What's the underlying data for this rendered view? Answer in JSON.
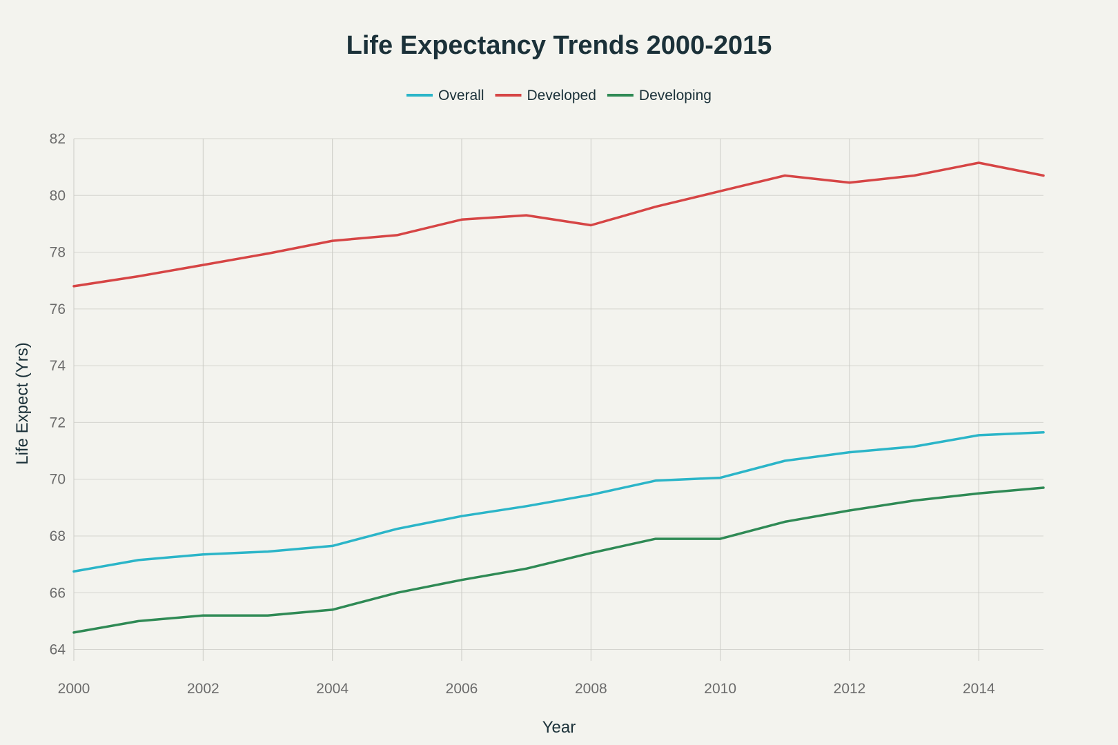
{
  "chart_data": {
    "type": "line",
    "title": "Life Expectancy Trends 2000-2015",
    "xlabel": "Year",
    "ylabel": "Life Expect (Yrs)",
    "x": [
      2000,
      2001,
      2002,
      2003,
      2004,
      2005,
      2006,
      2007,
      2008,
      2009,
      2010,
      2011,
      2012,
      2013,
      2014,
      2015
    ],
    "xlim": [
      2000,
      2015
    ],
    "ylim": [
      63.6,
      82
    ],
    "xticks": [
      2000,
      2002,
      2004,
      2006,
      2008,
      2010,
      2012,
      2014
    ],
    "yticks": [
      64,
      66,
      68,
      70,
      72,
      74,
      76,
      78,
      80,
      82
    ],
    "grid": true,
    "legend_position": "top-center",
    "series": [
      {
        "name": "Overall",
        "color": "#2bb5c8",
        "values": [
          66.75,
          67.15,
          67.35,
          67.45,
          67.65,
          68.25,
          68.7,
          69.05,
          69.45,
          69.95,
          70.05,
          70.65,
          70.95,
          71.15,
          71.55,
          71.65
        ]
      },
      {
        "name": "Developed",
        "color": "#d64545",
        "values": [
          76.8,
          77.15,
          77.55,
          77.95,
          78.4,
          78.6,
          79.15,
          79.3,
          78.95,
          79.6,
          80.15,
          80.7,
          80.45,
          80.7,
          81.15,
          80.7
        ]
      },
      {
        "name": "Developing",
        "color": "#2f8a55",
        "values": [
          64.6,
          65.0,
          65.2,
          65.2,
          65.4,
          66.0,
          66.45,
          66.85,
          67.4,
          67.9,
          67.9,
          68.5,
          68.9,
          69.25,
          69.5,
          69.7
        ]
      }
    ]
  }
}
